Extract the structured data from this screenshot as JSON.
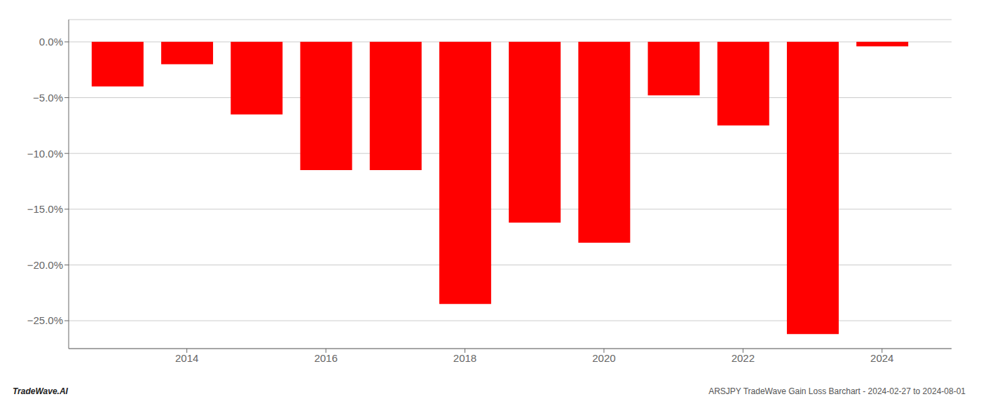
{
  "chart_data": {
    "type": "bar",
    "x": [
      2013,
      2014,
      2015,
      2016,
      2017,
      2018,
      2019,
      2020,
      2021,
      2022,
      2023,
      2024
    ],
    "values": [
      -4.0,
      -2.0,
      -6.5,
      -11.5,
      -11.5,
      -23.5,
      -16.2,
      -18.0,
      -4.8,
      -7.5,
      -26.2,
      -0.4
    ],
    "color": "#ff0000",
    "xlim": [
      2012.3,
      2025.0
    ],
    "xticks": [
      2014,
      2016,
      2018,
      2020,
      2022,
      2024
    ],
    "ylim": [
      -27.5,
      2.0
    ],
    "yticks": [
      {
        "value": 0.0,
        "label": "0.0%"
      },
      {
        "value": -5.0,
        "label": "−5.0%"
      },
      {
        "value": -10.0,
        "label": "−10.0%"
      },
      {
        "value": -15.0,
        "label": "−15.0%"
      },
      {
        "value": -20.0,
        "label": "−20.0%"
      },
      {
        "value": -25.0,
        "label": "−25.0%"
      }
    ],
    "grid": true,
    "annotations": [
      "TradeWave.AI",
      "ARSJPY TradeWave Gain Loss Barchart - 2024-02-27 to 2024-08-01"
    ]
  }
}
